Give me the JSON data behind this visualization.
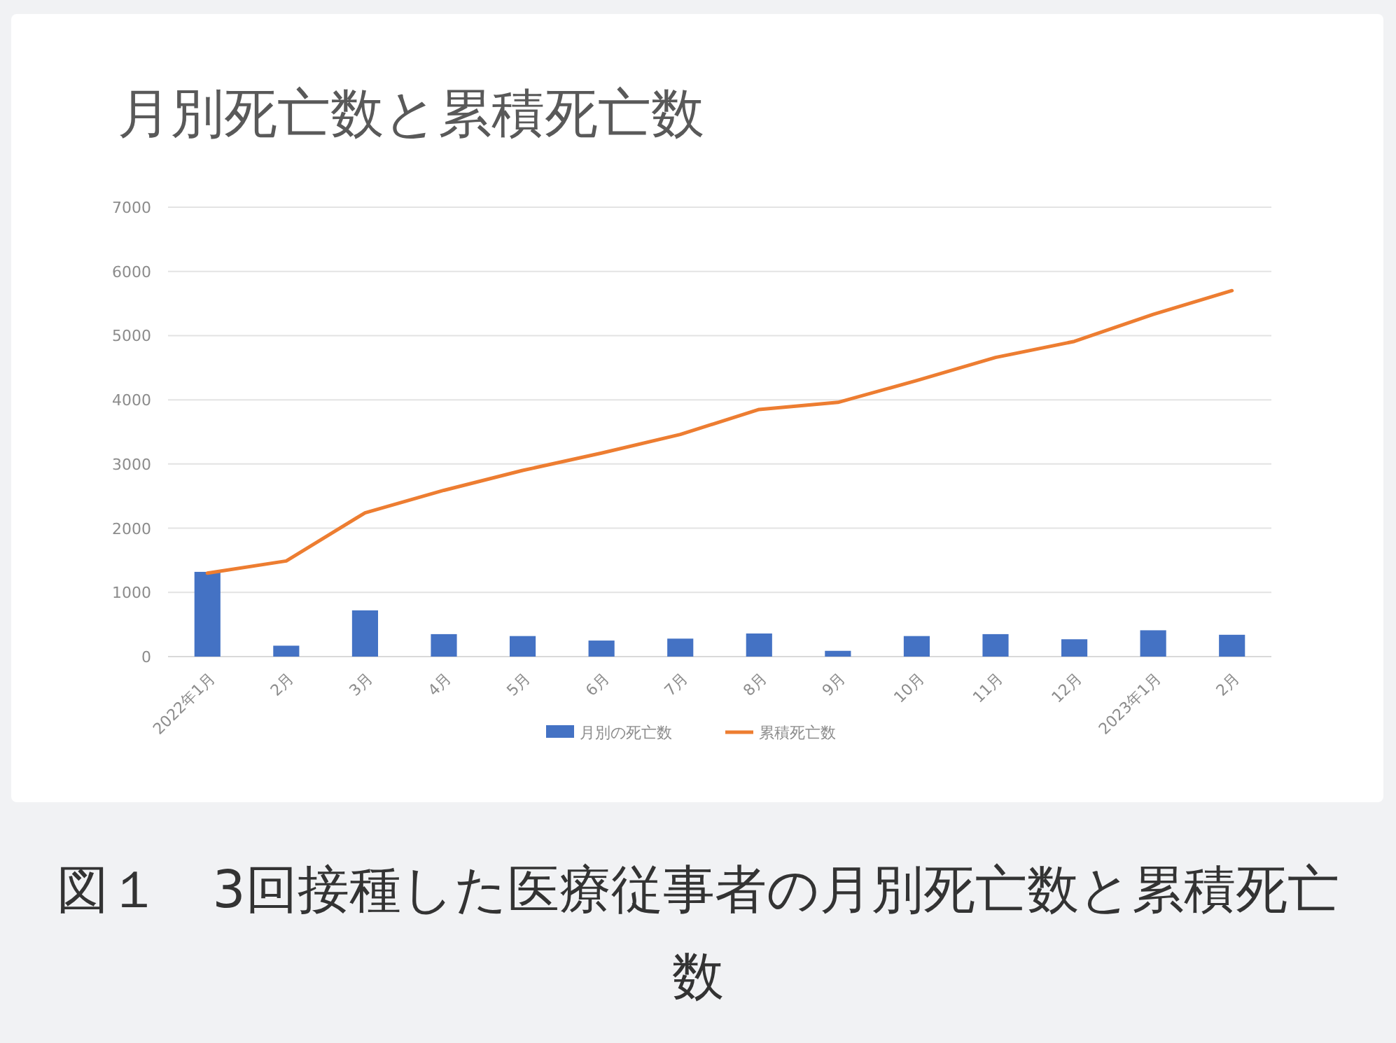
{
  "chart_data": {
    "type": "bar",
    "title": "月別死亡数と累積死亡数",
    "categories": [
      "2022年1月",
      "2月",
      "3月",
      "4月",
      "5月",
      "6月",
      "7月",
      "8月",
      "9月",
      "10月",
      "11月",
      "12月",
      "2023年1月",
      "2月"
    ],
    "series": [
      {
        "name": "月別の死亡数",
        "color": "#4472c4",
        "values": [
          1320,
          170,
          720,
          350,
          320,
          250,
          280,
          360,
          90,
          320,
          350,
          270,
          410,
          340
        ]
      },
      {
        "name": "累積死亡数",
        "type": "line",
        "color": "#ed7d31",
        "values": [
          1300,
          1490,
          2240,
          2590,
          2900,
          3170,
          3460,
          3850,
          3960,
          4300,
          4660,
          4910,
          5330,
          5700
        ]
      }
    ],
    "ylim": [
      0,
      7000
    ],
    "yticks": [
      0,
      1000,
      2000,
      3000,
      4000,
      5000,
      6000,
      7000
    ],
    "grid": "y",
    "legend": "bottom",
    "annotations": [
      "図１　3回接種した医療従事者の月別死亡数と累積死亡数"
    ]
  }
}
